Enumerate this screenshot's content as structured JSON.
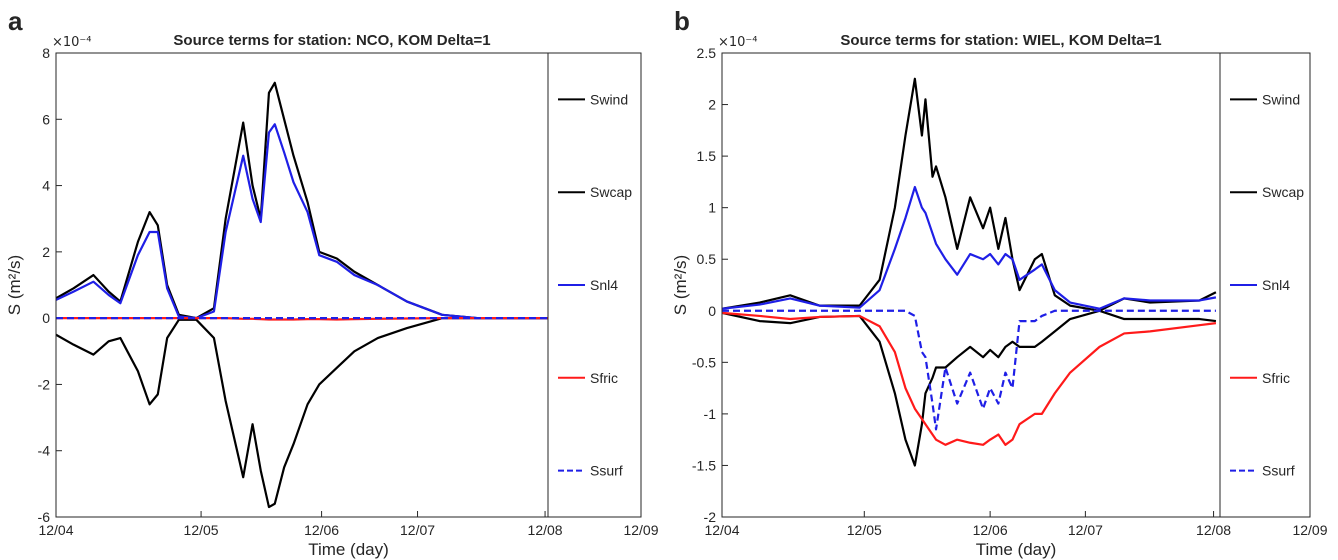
{
  "chart_data": [
    {
      "type": "line",
      "panel": "a",
      "title": "Source terms for station: NCO, KOM Delta=1",
      "xlabel": "Time (day)",
      "ylabel": "S (m²/s)",
      "exponent": "×10⁻⁴",
      "x": [
        0,
        0.15,
        0.32,
        0.45,
        0.55,
        0.7,
        0.8,
        0.87,
        0.95,
        1.05,
        1.2,
        1.35,
        1.45,
        1.6,
        1.68,
        1.75,
        1.82,
        1.87,
        1.95,
        2.03,
        2.15,
        2.25,
        2.4,
        2.55,
        2.75,
        3.0,
        3.3,
        3.6,
        4.0,
        4.2
      ],
      "series": [
        {
          "name": "Swind",
          "color": "#000000",
          "linestyle": "solid",
          "values": [
            0.6,
            0.9,
            1.3,
            0.8,
            0.5,
            2.3,
            3.2,
            2.8,
            1.0,
            0.1,
            0,
            0.3,
            3.0,
            5.9,
            4.0,
            3.0,
            6.8,
            7.1,
            6.0,
            4.9,
            3.5,
            2.0,
            1.8,
            1.4,
            1.0,
            0.5,
            0.1,
            0,
            0,
            0
          ]
        },
        {
          "name": "Swcap",
          "color": "#000000",
          "linestyle": "solid",
          "values": [
            -0.5,
            -0.8,
            -1.1,
            -0.7,
            -0.6,
            -1.6,
            -2.6,
            -2.3,
            -0.6,
            -0.05,
            -0.05,
            -0.6,
            -2.5,
            -4.8,
            -3.2,
            -4.6,
            -5.7,
            -5.6,
            -4.5,
            -3.8,
            -2.6,
            -2,
            -1.5,
            -1,
            -0.6,
            -0.3,
            0,
            0,
            0,
            0
          ]
        },
        {
          "name": "Snl4",
          "color": "#1f1fe6",
          "linestyle": "solid",
          "values": [
            0.55,
            0.8,
            1.1,
            0.7,
            0.45,
            1.9,
            2.6,
            2.6,
            0.9,
            0.05,
            0,
            0.2,
            2.6,
            4.9,
            3.6,
            2.9,
            5.6,
            5.85,
            5.0,
            4.1,
            3.2,
            1.9,
            1.7,
            1.3,
            1.0,
            0.5,
            0.1,
            0,
            0,
            0
          ]
        },
        {
          "name": "Sfric",
          "color": "#ff1a1a",
          "linestyle": "solid",
          "values": [
            0,
            0,
            0,
            0,
            0,
            0,
            0,
            0,
            0,
            0,
            0,
            0,
            0,
            -0.02,
            -0.02,
            -0.03,
            -0.04,
            -0.04,
            -0.04,
            -0.04,
            -0.03,
            -0.03,
            -0.04,
            -0.03,
            -0.02,
            -0.01,
            0,
            0,
            0,
            0
          ]
        },
        {
          "name": "Ssurf",
          "color": "#1f1fe6",
          "linestyle": "dashed",
          "values": [
            0,
            0,
            0,
            0,
            0,
            0,
            0,
            0,
            0,
            0,
            0,
            0,
            0,
            0,
            0,
            0,
            0,
            0,
            0,
            0,
            0,
            0,
            0,
            0,
            0,
            0,
            0,
            0,
            0,
            0
          ]
        }
      ],
      "xlim": [
        0,
        5
      ],
      "xticks": [
        {
          "value": 0,
          "label": "12/04"
        },
        {
          "value": 1.24,
          "label": "12/05"
        },
        {
          "value": 2.27,
          "label": "12/06"
        },
        {
          "value": 3.09,
          "label": "12/07"
        },
        {
          "value": 4.18,
          "label": "12/08"
        },
        {
          "value": 5,
          "label": "12/09"
        }
      ],
      "ylim": [
        -6,
        8
      ],
      "yticks": [
        -6,
        -4,
        -2,
        0,
        2,
        4,
        6,
        8
      ]
    },
    {
      "type": "line",
      "panel": "b",
      "title": "Source terms for station: WIEL, KOM Delta=1",
      "xlabel": "Time (day)",
      "ylabel": "S (m²/s)",
      "exponent": "×10⁻⁴",
      "x": [
        0,
        0.32,
        0.58,
        0.83,
        1.17,
        1.34,
        1.47,
        1.56,
        1.64,
        1.7,
        1.73,
        1.79,
        1.82,
        1.9,
        2.0,
        2.11,
        2.22,
        2.28,
        2.35,
        2.41,
        2.47,
        2.53,
        2.66,
        2.72,
        2.83,
        2.96,
        3.21,
        3.42,
        3.64,
        4.06,
        4.2
      ],
      "series": [
        {
          "name": "Swind",
          "color": "#000000",
          "linestyle": "solid",
          "values": [
            0.02,
            0.08,
            0.15,
            0.05,
            0.05,
            0.3,
            1.0,
            1.7,
            2.25,
            1.7,
            2.05,
            1.3,
            1.4,
            1.1,
            0.6,
            1.1,
            0.8,
            1.0,
            0.6,
            0.9,
            0.5,
            0.2,
            0.5,
            0.55,
            0.15,
            0.05,
            0,
            0.12,
            0.08,
            0.1,
            0.18
          ]
        },
        {
          "name": "Swcap",
          "color": "#000000",
          "linestyle": "solid",
          "values": [
            -0.02,
            -0.1,
            -0.12,
            -0.06,
            -0.05,
            -0.3,
            -0.8,
            -1.25,
            -1.5,
            -1.1,
            -0.8,
            -0.65,
            -0.55,
            -0.55,
            -0.45,
            -0.35,
            -0.45,
            -0.38,
            -0.45,
            -0.35,
            -0.3,
            -0.35,
            -0.35,
            -0.3,
            -0.2,
            -0.08,
            0,
            -0.08,
            -0.08,
            -0.08,
            -0.1
          ]
        },
        {
          "name": "Snl4",
          "color": "#1f1fe6",
          "linestyle": "solid",
          "values": [
            0.02,
            0.06,
            0.12,
            0.05,
            0.03,
            0.2,
            0.6,
            0.9,
            1.2,
            1.0,
            0.95,
            0.75,
            0.65,
            0.5,
            0.35,
            0.55,
            0.5,
            0.55,
            0.45,
            0.55,
            0.5,
            0.3,
            0.4,
            0.45,
            0.2,
            0.08,
            0.02,
            0.12,
            0.1,
            0.1,
            0.13
          ]
        },
        {
          "name": "Sfric",
          "color": "#ff1a1a",
          "linestyle": "solid",
          "values": [
            -0.02,
            -0.05,
            -0.08,
            -0.06,
            -0.05,
            -0.15,
            -0.4,
            -0.75,
            -0.95,
            -1.05,
            -1.1,
            -1.2,
            -1.25,
            -1.3,
            -1.25,
            -1.28,
            -1.3,
            -1.25,
            -1.2,
            -1.3,
            -1.25,
            -1.1,
            -1.0,
            -1.0,
            -0.8,
            -0.6,
            -0.35,
            -0.22,
            -0.2,
            -0.14,
            -0.12
          ]
        },
        {
          "name": "Ssurf",
          "color": "#1f1fe6",
          "linestyle": "dashed",
          "values": [
            0,
            0,
            0,
            0,
            0,
            0,
            0,
            0,
            -0.05,
            -0.4,
            -0.45,
            -0.9,
            -1.15,
            -0.55,
            -0.9,
            -0.6,
            -0.95,
            -0.75,
            -0.9,
            -0.6,
            -0.75,
            -0.1,
            -0.1,
            -0.05,
            0,
            0,
            0,
            0,
            0,
            0,
            0
          ]
        }
      ],
      "xlim": [
        0,
        5
      ],
      "xticks": [
        {
          "value": 0,
          "label": "12/04"
        },
        {
          "value": 1.21,
          "label": "12/05"
        },
        {
          "value": 2.28,
          "label": "12/06"
        },
        {
          "value": 3.09,
          "label": "12/07"
        },
        {
          "value": 4.18,
          "label": "12/08"
        },
        {
          "value": 5,
          "label": "12/09"
        }
      ],
      "ylim": [
        -2,
        2.5
      ],
      "yticks": [
        -2,
        -1.5,
        -1,
        -0.5,
        0,
        0.5,
        1,
        1.5,
        2,
        2.5
      ]
    }
  ]
}
